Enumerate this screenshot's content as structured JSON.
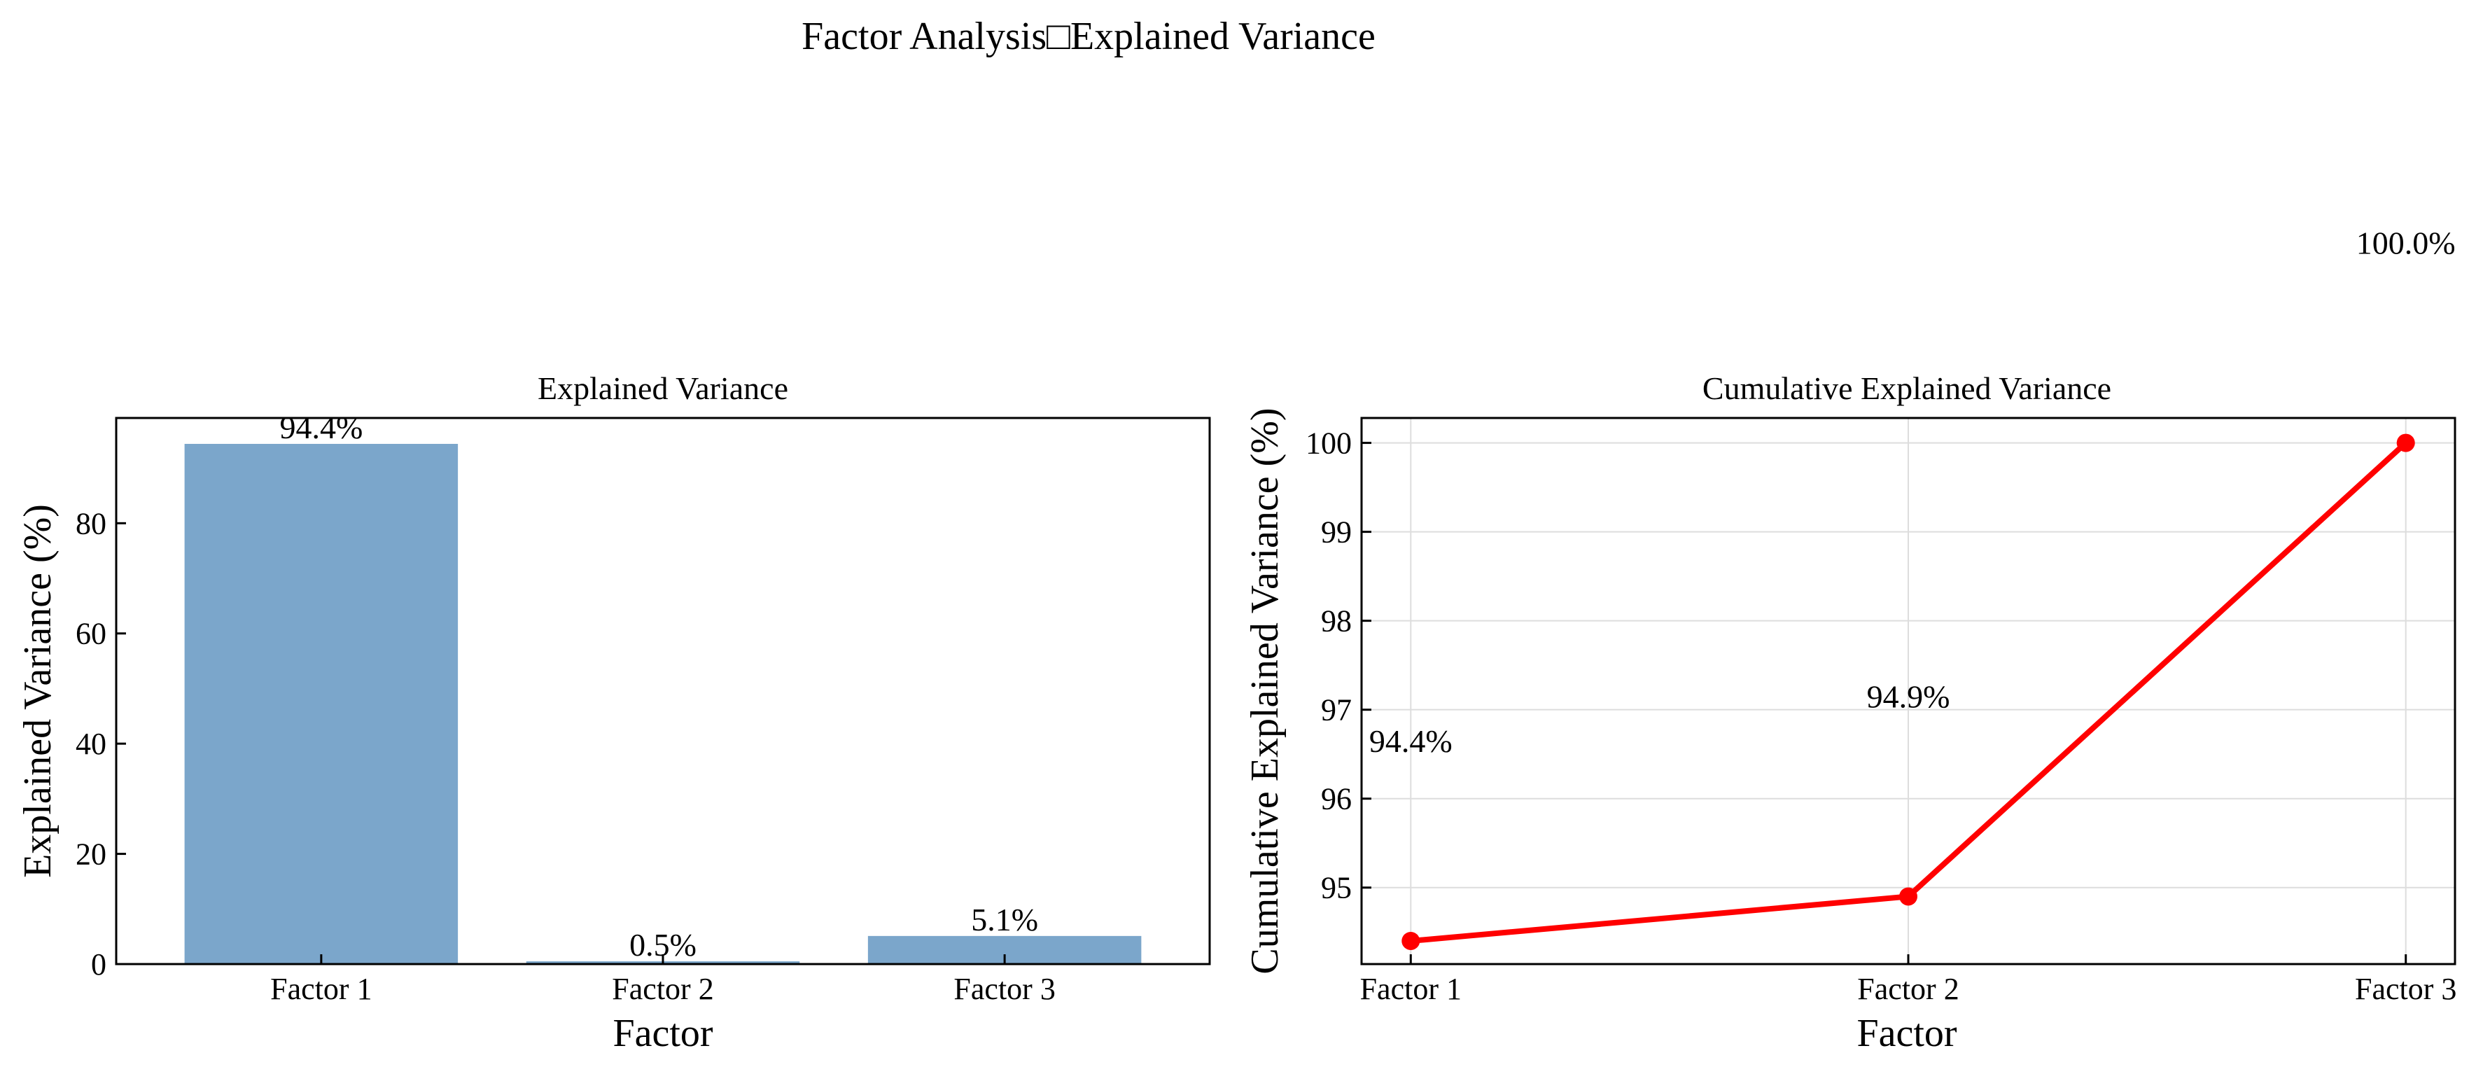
{
  "figure_title": "Factor Analysis□Explained Variance",
  "chart_data": [
    {
      "type": "bar",
      "title": "Explained Variance",
      "xlabel": "Factor",
      "ylabel": "Explained Variance (%)",
      "categories": [
        "Factor 1",
        "Factor 2",
        "Factor 3"
      ],
      "values": [
        94.4,
        0.5,
        5.1
      ],
      "data_labels": [
        "94.4%",
        "0.5%",
        "5.1%"
      ],
      "ylim": [
        0,
        99.1
      ],
      "yticks": [
        0,
        20,
        40,
        60,
        80
      ],
      "grid": false,
      "bar_color": "#7ba6cb"
    },
    {
      "type": "line",
      "title": "Cumulative Explained Variance",
      "xlabel": "Factor",
      "ylabel": "Cumulative Explained Variance  (%)",
      "categories": [
        "Factor 1",
        "Factor 2",
        "Factor 3"
      ],
      "values": [
        94.4,
        94.9,
        100.0
      ],
      "data_labels": [
        "94.4%",
        "94.9%",
        "100.0%"
      ],
      "ylim": [
        94.14,
        100.28
      ],
      "yticks": [
        95,
        96,
        97,
        98,
        99,
        100
      ],
      "grid": true,
      "line_color": "#ff0000"
    }
  ]
}
